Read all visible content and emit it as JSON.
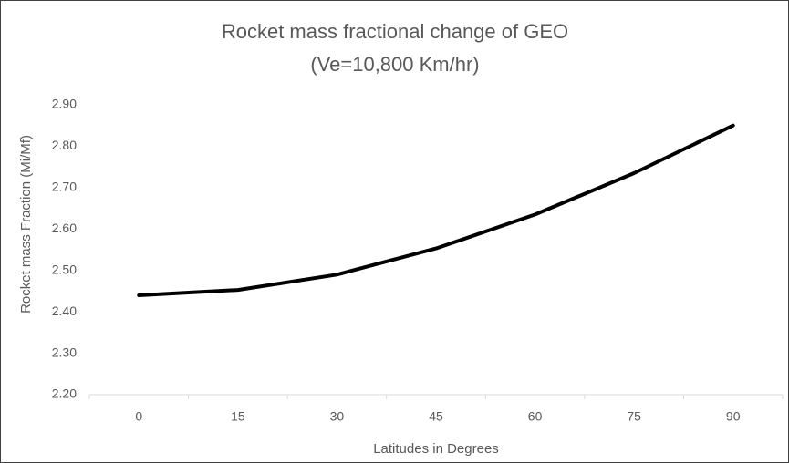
{
  "chart_data": {
    "type": "line",
    "title": "Rocket mass fractional change of GEO",
    "subtitle": "(Ve=10,800 Km/hr)",
    "x_label": "Latitudes in Degrees",
    "y_label": "Rocket mass Fraction (Mi/Mf)",
    "categories": [
      "0",
      "15",
      "30",
      "45",
      "60",
      "75",
      "90"
    ],
    "values": [
      2.44,
      2.453,
      2.49,
      2.553,
      2.635,
      2.735,
      2.85
    ],
    "color": "#000000",
    "ylim": [
      2.2,
      2.9
    ],
    "yticks": [
      {
        "value": 2.2,
        "label": "2.20"
      },
      {
        "value": 2.3,
        "label": "2.30"
      },
      {
        "value": 2.4,
        "label": "2.40"
      },
      {
        "value": 2.5,
        "label": "2.50"
      },
      {
        "value": 2.6,
        "label": "2.60"
      },
      {
        "value": 2.7,
        "label": "2.70"
      },
      {
        "value": 2.8,
        "label": "2.80"
      },
      {
        "value": 2.9,
        "label": "2.90"
      }
    ],
    "grid": false
  }
}
